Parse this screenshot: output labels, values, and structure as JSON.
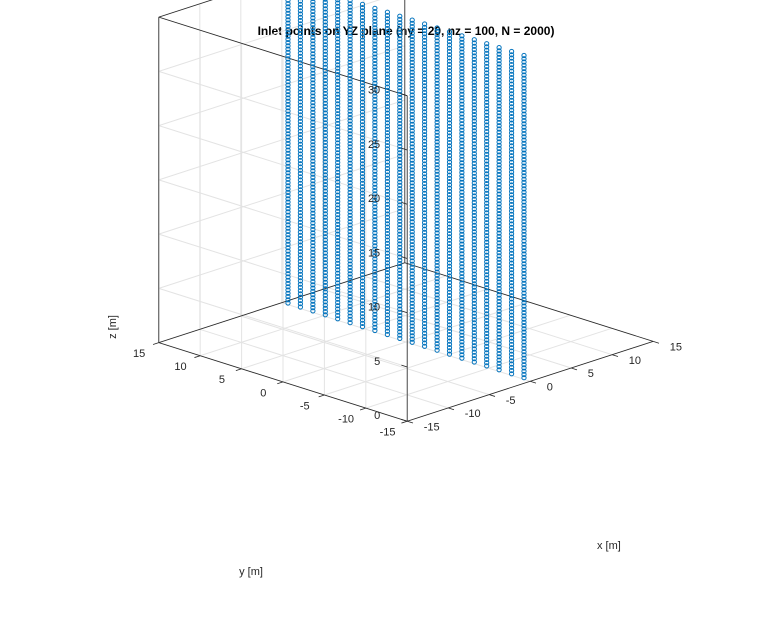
{
  "chart_data": {
    "type": "scatter",
    "title": "Inlet points on YZ plane (ny = 20, nz = 100, N = 2000)",
    "xlabel": "x [m]",
    "ylabel": "y [m]",
    "zlabel": "z [m]",
    "xlim": [
      -15,
      15
    ],
    "ylim": [
      -15,
      15
    ],
    "zlim": [
      0,
      30
    ],
    "xticks": [
      -15,
      -10,
      -5,
      0,
      5,
      10,
      15
    ],
    "yticks": [
      -15,
      -10,
      -5,
      0,
      5,
      10,
      15
    ],
    "zticks": [
      0,
      5,
      10,
      15,
      20,
      25,
      30
    ],
    "grid": true,
    "marker": "circle",
    "marker_color": "#0072bd",
    "series": [
      {
        "x": 0,
        "y_count": 20,
        "y_range": [
          -14.25,
          14.25
        ],
        "z_count": 100,
        "z_range": [
          0.15,
          29.85
        ],
        "total_points": 2000
      }
    ]
  }
}
